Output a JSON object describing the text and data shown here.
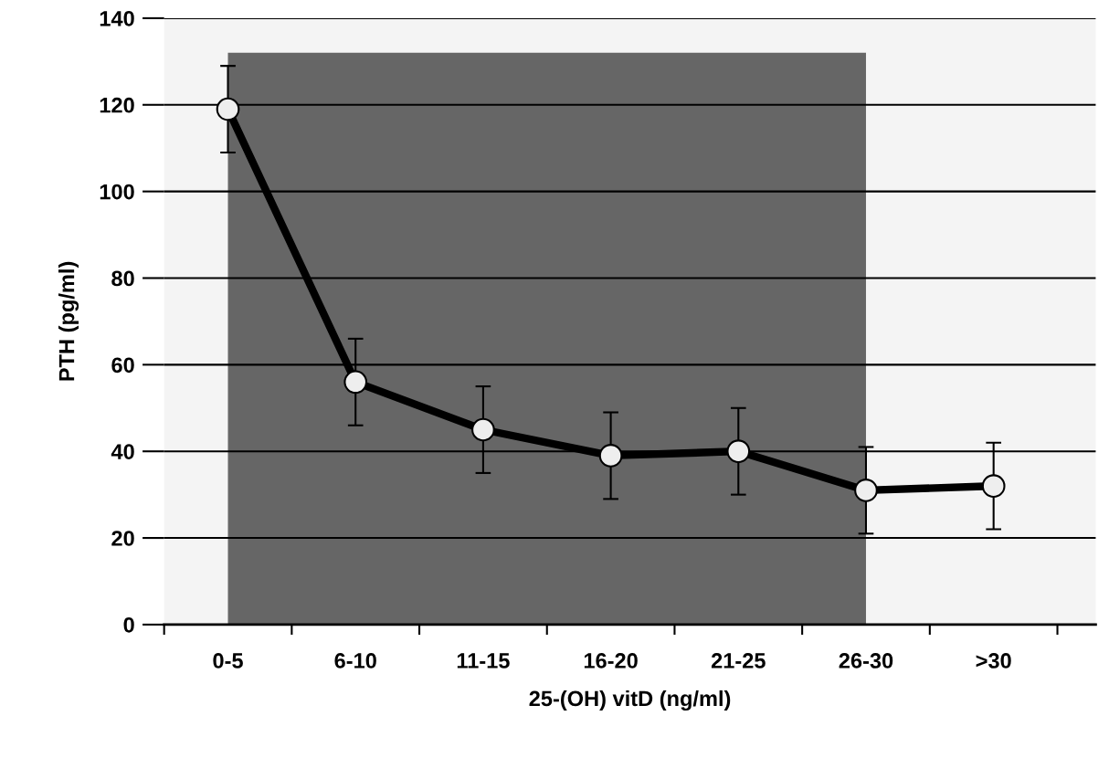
{
  "chart_data": {
    "type": "line",
    "xlabel": "25-(OH) vitD (ng/ml)",
    "ylabel": "PTH (pg/ml)",
    "categories": [
      "0-5",
      "6-10",
      "11-15",
      "16-20",
      "21-25",
      "26-30",
      ">30"
    ],
    "series": [
      {
        "type": "area",
        "color": "#666666",
        "values": [
          132,
          132,
          132,
          132,
          132,
          132,
          null
        ]
      },
      {
        "color": "#000000",
        "marker": "circle",
        "values": [
          119,
          56,
          45,
          39,
          40,
          31,
          32
        ],
        "errors": [
          10,
          10,
          10,
          10,
          10,
          10,
          10
        ]
      }
    ],
    "ylim": [
      0,
      140
    ],
    "yticks": [
      0,
      20,
      40,
      60,
      80,
      100,
      120,
      140
    ],
    "grid": "y",
    "line_style": "solid"
  }
}
